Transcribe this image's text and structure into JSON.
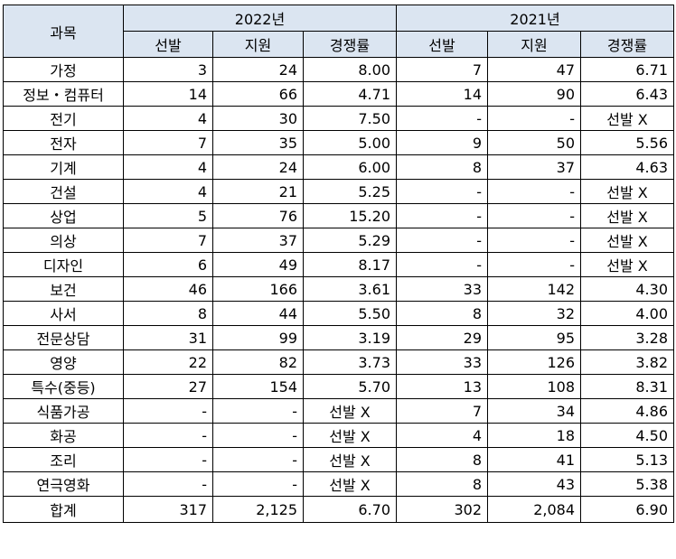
{
  "header": {
    "subject": "과목",
    "years": [
      "2022년",
      "2021년"
    ],
    "columns": [
      "선발",
      "지원",
      "경쟁률"
    ]
  },
  "rows": [
    {
      "subject": "가정",
      "y2022": [
        "3",
        "24",
        "8.00"
      ],
      "y2021": [
        "7",
        "47",
        "6.71"
      ]
    },
    {
      "subject": "정보・컴퓨터",
      "y2022": [
        "14",
        "66",
        "4.71"
      ],
      "y2021": [
        "14",
        "90",
        "6.43"
      ]
    },
    {
      "subject": "전기",
      "y2022": [
        "4",
        "30",
        "7.50"
      ],
      "y2021": [
        "-",
        "-",
        "선발 X"
      ]
    },
    {
      "subject": "전자",
      "y2022": [
        "7",
        "35",
        "5.00"
      ],
      "y2021": [
        "9",
        "50",
        "5.56"
      ]
    },
    {
      "subject": "기계",
      "y2022": [
        "4",
        "24",
        "6.00"
      ],
      "y2021": [
        "8",
        "37",
        "4.63"
      ]
    },
    {
      "subject": "건설",
      "y2022": [
        "4",
        "21",
        "5.25"
      ],
      "y2021": [
        "-",
        "-",
        "선발 X"
      ]
    },
    {
      "subject": "상업",
      "y2022": [
        "5",
        "76",
        "15.20"
      ],
      "y2021": [
        "-",
        "-",
        "선발 X"
      ]
    },
    {
      "subject": "의상",
      "y2022": [
        "7",
        "37",
        "5.29"
      ],
      "y2021": [
        "-",
        "-",
        "선발 X"
      ]
    },
    {
      "subject": "디자인",
      "y2022": [
        "6",
        "49",
        "8.17"
      ],
      "y2021": [
        "-",
        "-",
        "선발 X"
      ]
    },
    {
      "subject": "보건",
      "y2022": [
        "46",
        "166",
        "3.61"
      ],
      "y2021": [
        "33",
        "142",
        "4.30"
      ]
    },
    {
      "subject": "사서",
      "y2022": [
        "8",
        "44",
        "5.50"
      ],
      "y2021": [
        "8",
        "32",
        "4.00"
      ]
    },
    {
      "subject": "전문상담",
      "y2022": [
        "31",
        "99",
        "3.19"
      ],
      "y2021": [
        "29",
        "95",
        "3.28"
      ]
    },
    {
      "subject": "영양",
      "y2022": [
        "22",
        "82",
        "3.73"
      ],
      "y2021": [
        "33",
        "126",
        "3.82"
      ]
    },
    {
      "subject": "특수(중등)",
      "y2022": [
        "27",
        "154",
        "5.70"
      ],
      "y2021": [
        "13",
        "108",
        "8.31"
      ]
    },
    {
      "subject": "식품가공",
      "y2022": [
        "-",
        "-",
        "선발 X"
      ],
      "y2021": [
        "7",
        "34",
        "4.86"
      ]
    },
    {
      "subject": "화공",
      "y2022": [
        "-",
        "-",
        "선발 X"
      ],
      "y2021": [
        "4",
        "18",
        "4.50"
      ]
    },
    {
      "subject": "조리",
      "y2022": [
        "-",
        "-",
        "선발 X"
      ],
      "y2021": [
        "8",
        "41",
        "5.13"
      ]
    },
    {
      "subject": "연극영화",
      "y2022": [
        "-",
        "-",
        "선발 X"
      ],
      "y2021": [
        "8",
        "43",
        "5.38"
      ]
    }
  ],
  "total": {
    "subject": "합계",
    "y2022": [
      "317",
      "2,125",
      "6.70"
    ],
    "y2021": [
      "302",
      "2,084",
      "6.90"
    ]
  }
}
